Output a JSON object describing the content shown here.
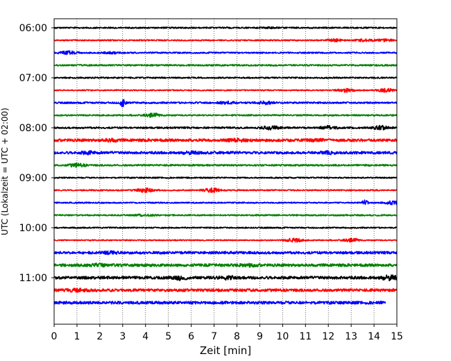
{
  "chart_data": {
    "type": "line",
    "subtype": "helicorder",
    "xlabel": "Zeit  [min]",
    "ylabel": "UTC (Lokalzeit = UTC + 02:00)",
    "xlim": [
      0,
      15
    ],
    "x_ticks": [
      0,
      1,
      2,
      3,
      4,
      5,
      6,
      7,
      8,
      9,
      10,
      11,
      12,
      13,
      14,
      15
    ],
    "y_tick_labels": [
      "06:00",
      "07:00",
      "08:00",
      "09:00",
      "10:00",
      "11:00"
    ],
    "grid": "vertical-dotted",
    "trace_minutes": 15,
    "colors_cycle": [
      "#000000",
      "#ff0000",
      "#0000ff",
      "#008000"
    ],
    "traces": [
      {
        "start": "06:00",
        "end_min": 15,
        "color": "#000000",
        "amplitude": 1.0,
        "bursts": [
          [
            9.5,
            0.7
          ]
        ]
      },
      {
        "start": "06:15",
        "end_min": 15,
        "color": "#ff0000",
        "amplitude": 0.9,
        "bursts": [
          [
            12.3,
            1.6
          ],
          [
            13.6,
            1.6
          ],
          [
            14.5,
            1.4
          ]
        ]
      },
      {
        "start": "06:30",
        "end_min": 15,
        "color": "#0000ff",
        "amplitude": 1.0,
        "bursts": [
          [
            0.6,
            2.3
          ],
          [
            2.5,
            0.9
          ]
        ]
      },
      {
        "start": "06:45",
        "end_min": 15,
        "color": "#008000",
        "amplitude": 1.1,
        "bursts": []
      },
      {
        "start": "07:00",
        "end_min": 15,
        "color": "#000000",
        "amplitude": 1.0,
        "bursts": []
      },
      {
        "start": "07:15",
        "end_min": 15,
        "color": "#ff0000",
        "amplitude": 0.8,
        "bursts": [
          [
            12.8,
            2.4
          ],
          [
            14.5,
            2.2
          ]
        ]
      },
      {
        "start": "07:30",
        "end_min": 15,
        "color": "#0000ff",
        "amplitude": 1.2,
        "bursts": [
          [
            3.0,
            5.0
          ],
          [
            7.5,
            1.6
          ],
          [
            9.2,
            1.6
          ]
        ]
      },
      {
        "start": "07:45",
        "end_min": 15,
        "color": "#008000",
        "amplitude": 1.0,
        "bursts": [
          [
            4.3,
            2.5
          ]
        ]
      },
      {
        "start": "08:00",
        "end_min": 15,
        "color": "#000000",
        "amplitude": 1.2,
        "bursts": [
          [
            9.5,
            2.2
          ],
          [
            12.0,
            2.2
          ],
          [
            14.3,
            2.4
          ]
        ]
      },
      {
        "start": "08:15",
        "end_min": 15,
        "color": "#ff0000",
        "amplitude": 2.0,
        "bursts": [
          [
            2.5,
            1.2
          ],
          [
            8.0,
            1.2
          ],
          [
            11.5,
            1.2
          ]
        ]
      },
      {
        "start": "08:30",
        "end_min": 15,
        "color": "#0000ff",
        "amplitude": 1.8,
        "bursts": [
          [
            1.5,
            1.3
          ],
          [
            6.0,
            1.2
          ],
          [
            12.0,
            1.2
          ]
        ]
      },
      {
        "start": "08:45",
        "end_min": 15,
        "color": "#008000",
        "amplitude": 1.2,
        "bursts": [
          [
            1.0,
            2.2
          ]
        ]
      },
      {
        "start": "09:00",
        "end_min": 15,
        "color": "#000000",
        "amplitude": 0.9,
        "bursts": []
      },
      {
        "start": "09:15",
        "end_min": 15,
        "color": "#ff0000",
        "amplitude": 0.9,
        "bursts": [
          [
            4.0,
            2.8
          ],
          [
            6.9,
            2.8
          ]
        ]
      },
      {
        "start": "09:30",
        "end_min": 15,
        "color": "#0000ff",
        "amplitude": 0.9,
        "bursts": [
          [
            13.6,
            3.8
          ],
          [
            14.8,
            2.0
          ]
        ]
      },
      {
        "start": "09:45",
        "end_min": 15,
        "color": "#008000",
        "amplitude": 1.0,
        "bursts": [
          [
            4.0,
            1.2
          ]
        ]
      },
      {
        "start": "10:00",
        "end_min": 15,
        "color": "#000000",
        "amplitude": 0.9,
        "bursts": []
      },
      {
        "start": "10:15",
        "end_min": 15,
        "color": "#ff0000",
        "amplitude": 0.8,
        "bursts": [
          [
            10.5,
            2.6
          ],
          [
            13.0,
            2.4
          ]
        ]
      },
      {
        "start": "10:30",
        "end_min": 15,
        "color": "#0000ff",
        "amplitude": 1.8,
        "bursts": [
          [
            2.5,
            1.2
          ]
        ]
      },
      {
        "start": "10:45",
        "end_min": 15,
        "color": "#008000",
        "amplitude": 2.0,
        "bursts": [
          [
            2.0,
            1.2
          ],
          [
            8.5,
            1.1
          ]
        ]
      },
      {
        "start": "11:00",
        "end_min": 15,
        "color": "#000000",
        "amplitude": 2.0,
        "bursts": [
          [
            5.5,
            2.3
          ],
          [
            7.6,
            1.8
          ],
          [
            14.7,
            2.5
          ]
        ]
      },
      {
        "start": "11:15",
        "end_min": 15,
        "color": "#ff0000",
        "amplitude": 2.0,
        "bursts": [
          [
            1.0,
            1.2
          ]
        ]
      },
      {
        "start": "11:30",
        "end_min": 14.5,
        "color": "#0000ff",
        "amplitude": 2.0,
        "bursts": []
      }
    ]
  }
}
